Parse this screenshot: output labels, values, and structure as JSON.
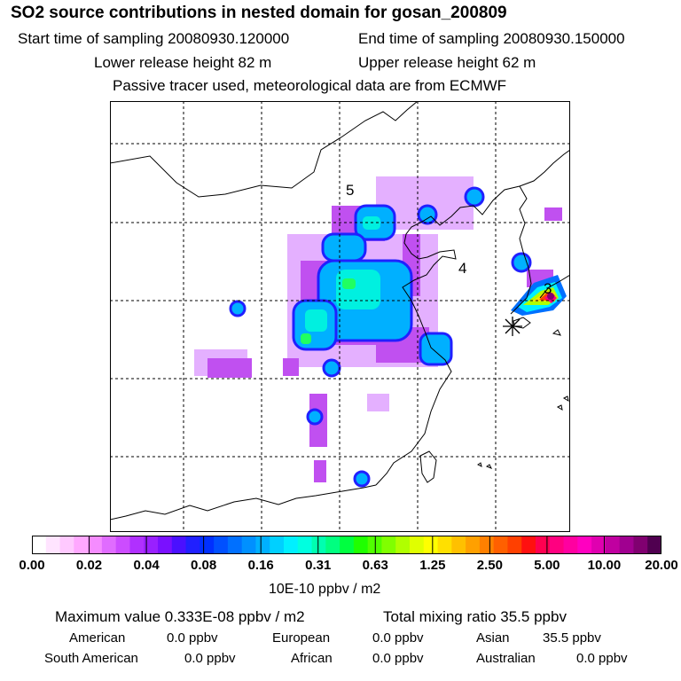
{
  "header": {
    "title": "SO2 source contributions in nested domain for gosan_200809",
    "start_time": "Start time of sampling 20080930.120000",
    "end_time": "End time of sampling 20080930.150000",
    "lower_release": "Lower release height   82 m",
    "upper_release": "Upper release height   62 m",
    "tracer_note": "Passive tracer used, meteorological data are from ECMWF"
  },
  "map": {
    "labels": [
      "5",
      "4",
      "3"
    ],
    "receptor_symbol": "asterisk-marker"
  },
  "colorbar": {
    "tick_labels": [
      "0.00",
      "0.02",
      "0.04",
      "0.08",
      "0.16",
      "0.31",
      "0.63",
      "1.25",
      "2.50",
      "5.00",
      "10.00",
      "20.00"
    ],
    "colors": [
      "#ffffff",
      "#ffe4ff",
      "#ffc9ff",
      "#ffa8ff",
      "#f58cff",
      "#e06cff",
      "#cc4cff",
      "#b030ff",
      "#9920ff",
      "#7a10ff",
      "#4a10ff",
      "#2020ff",
      "#0030ff",
      "#0050ff",
      "#0070ff",
      "#0090ff",
      "#00b0ff",
      "#00d0ff",
      "#00f0ff",
      "#00ffe0",
      "#00ffb0",
      "#00ff80",
      "#00ff40",
      "#20ff00",
      "#50ff00",
      "#80ff00",
      "#b0ff00",
      "#e0ff00",
      "#ffff00",
      "#ffe000",
      "#ffc000",
      "#ffa000",
      "#ff8000",
      "#ff6000",
      "#ff4000",
      "#ff1010",
      "#ff0050",
      "#ff0080",
      "#ff00a0",
      "#ff00c0",
      "#e000b0",
      "#c000a0",
      "#a00090",
      "#800070",
      "#500050"
    ],
    "unit": "10E-10 ppbv / m2"
  },
  "summary": {
    "max_value": "Maximum value  0.333E-08 ppbv / m2",
    "total_mixing": "Total mixing ratio      35.5 ppbv",
    "regions": [
      {
        "name": "American",
        "value": "0.0 ppbv"
      },
      {
        "name": "European",
        "value": "0.0 ppbv"
      },
      {
        "name": "Asian",
        "value": "35.5 ppbv"
      },
      {
        "name": "South American",
        "value": "0.0 ppbv"
      },
      {
        "name": "African",
        "value": "0.0 ppbv"
      },
      {
        "name": "Australian",
        "value": "0.0 ppbv"
      }
    ]
  }
}
